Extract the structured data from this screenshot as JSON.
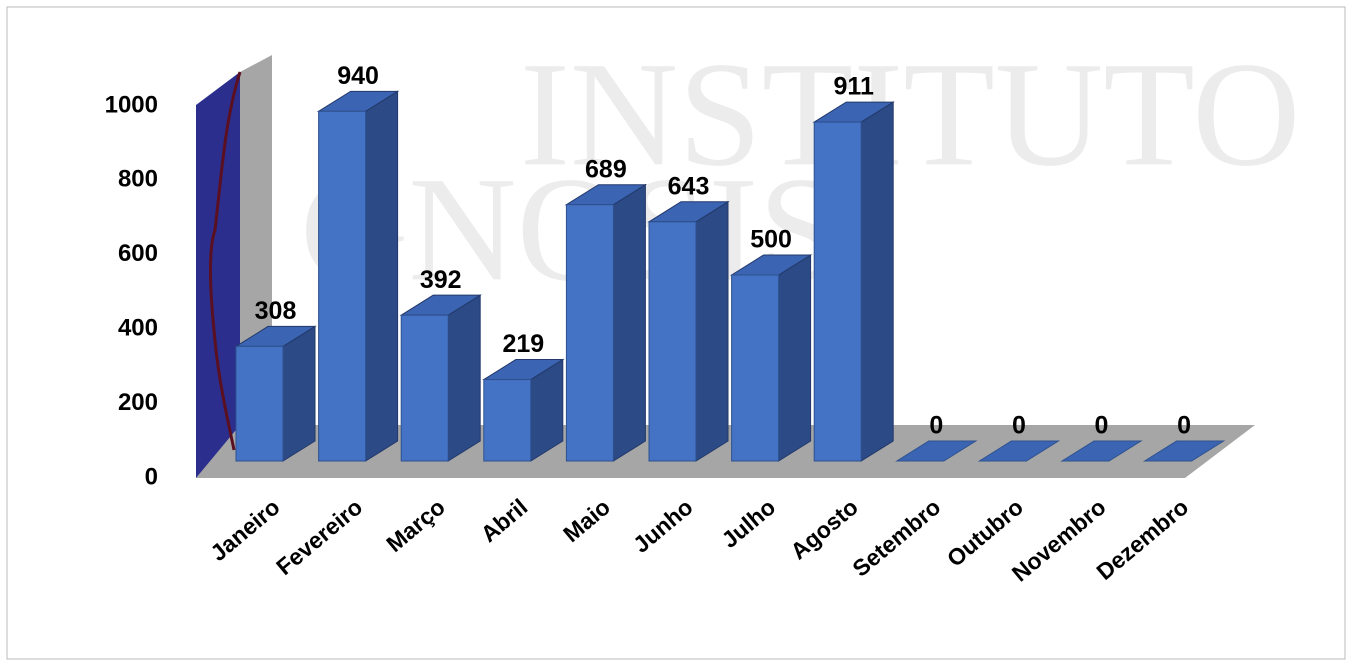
{
  "chart_data": {
    "type": "bar3d",
    "watermark": [
      "INSTITUTO",
      "GNOSIS"
    ],
    "categories": [
      "Janeiro",
      "Fevereiro",
      "Março",
      "Abril",
      "Maio",
      "Junho",
      "Julho",
      "Agosto",
      "Setembro",
      "Outubro",
      "Novembro",
      "Dezembro"
    ],
    "values": [
      308,
      940,
      392,
      219,
      689,
      643,
      500,
      911,
      0,
      0,
      0,
      0
    ],
    "color": "#4472c4",
    "ylim": [
      0,
      1000
    ],
    "yticks": [
      0,
      200,
      400,
      600,
      800,
      1000
    ]
  }
}
